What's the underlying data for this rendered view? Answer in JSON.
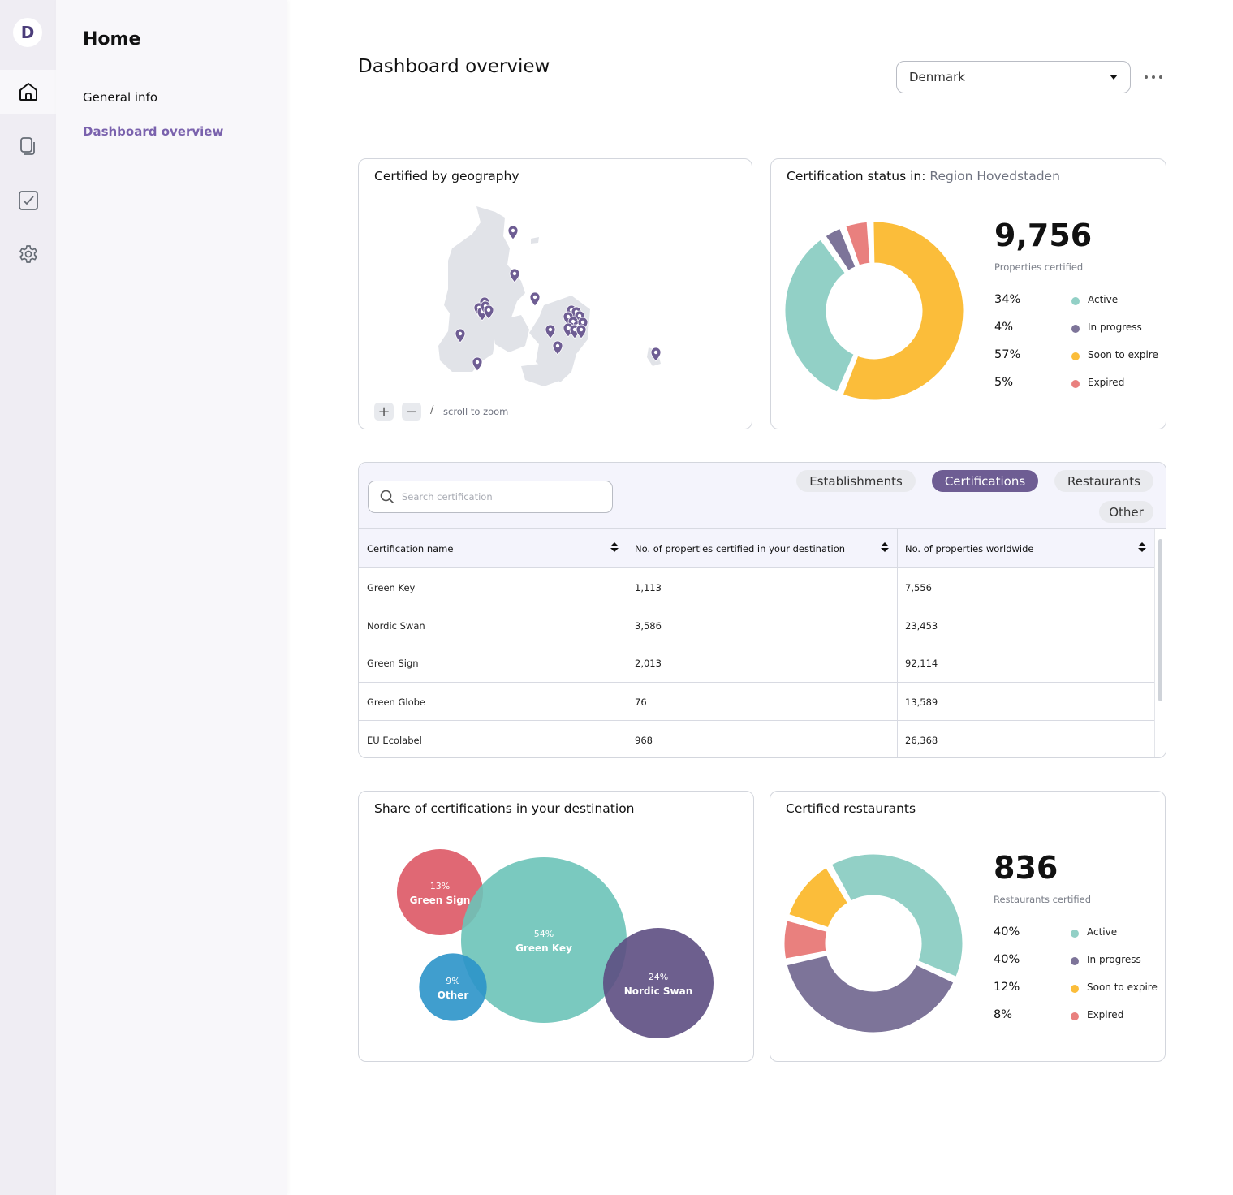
{
  "rail": {
    "logo_letter": "D",
    "items": [
      {
        "icon": "home-icon",
        "active": true
      },
      {
        "icon": "documents-icon",
        "active": false
      },
      {
        "icon": "checkbox-icon",
        "active": false
      },
      {
        "icon": "gear-icon",
        "active": false
      }
    ]
  },
  "nav": {
    "title": "Home",
    "links": [
      {
        "label": "General info",
        "active": false
      },
      {
        "label": "Dashboard overview",
        "active": true
      }
    ]
  },
  "header": {
    "title": "Dashboard overview",
    "country_select": {
      "value": "Denmark"
    },
    "more_icon": "ellipsis-icon"
  },
  "colors": {
    "active": "#92d0c6",
    "in_progress": "#7d7499",
    "soon_to_expire": "#fbbd3a",
    "expired": "#e9807e",
    "accent": "#7a62ad",
    "pill_active": "#6e5d93",
    "pin": "#6e5d93",
    "map_land": "#e1e3e8"
  },
  "geo_card": {
    "title": "Certified by geography",
    "zoom_in_label": "+",
    "zoom_out_label": "−",
    "separator": "/",
    "hint": "scroll to zoom"
  },
  "status_card": {
    "title_prefix": "Certification status in:",
    "region": "Region Hovedstaden",
    "total": "9,756",
    "total_label": "Properties certified"
  },
  "restaurants_card": {
    "title": "Certified restaurants",
    "total": "836",
    "total_label": "Restaurants certified"
  },
  "table": {
    "search_placeholder": "Search certification",
    "tabs": [
      {
        "label": "Establishments",
        "active": false
      },
      {
        "label": "Certifications",
        "active": true
      },
      {
        "label": "Restaurants",
        "active": false
      },
      {
        "label": "Other",
        "active": false
      }
    ],
    "columns": [
      "Certification name",
      "No. of properties certified in your destination",
      "No. of properties worldwide"
    ],
    "rows": [
      {
        "name": "Green Key",
        "destination": "1,113",
        "worldwide": "7,556"
      },
      {
        "name": "Nordic Swan",
        "destination": "3,586",
        "worldwide": "23,453"
      },
      {
        "name": "Green Sign",
        "destination": "2,013",
        "worldwide": "92,114"
      },
      {
        "name": "Green Globe",
        "destination": "76",
        "worldwide": "13,589"
      },
      {
        "name": "EU Ecolabel",
        "destination": "968",
        "worldwide": "26,368"
      }
    ]
  },
  "share_card": {
    "title": "Share of certifications in your destination"
  },
  "chart_data": [
    {
      "type": "pie",
      "variant": "donut",
      "title": "Certification status in: Region Hovedstaden",
      "total": 9756,
      "slices": [
        {
          "label": "Active",
          "value": 34,
          "display": "34%",
          "color": "#92d0c6"
        },
        {
          "label": "In progress",
          "value": 4,
          "display": "4%",
          "color": "#7d7499"
        },
        {
          "label": "Soon to expire",
          "value": 57,
          "display": "57%",
          "color": "#fbbd3a"
        },
        {
          "label": "Expired",
          "value": 5,
          "display": "5%",
          "color": "#e9807e"
        }
      ]
    },
    {
      "type": "pie",
      "variant": "donut",
      "title": "Certified restaurants",
      "total": 836,
      "slices": [
        {
          "label": "Active",
          "value": 40,
          "display": "40%",
          "color": "#92d0c6"
        },
        {
          "label": "In progress",
          "value": 40,
          "display": "40%",
          "color": "#7d7499"
        },
        {
          "label": "Soon to expire",
          "value": 12,
          "display": "12%",
          "color": "#fbbd3a"
        },
        {
          "label": "Expired",
          "value": 8,
          "display": "8%",
          "color": "#e9807e"
        }
      ]
    },
    {
      "type": "bubble",
      "title": "Share of certifications in your destination",
      "bubbles": [
        {
          "label": "Green Sign",
          "value": 13,
          "display": "13%",
          "color": "#dd5865"
        },
        {
          "label": "Green Key",
          "value": 54,
          "display": "54%",
          "color": "#6cc3b8"
        },
        {
          "label": "Other",
          "value": 9,
          "display": "9%",
          "color": "#2b93c9"
        },
        {
          "label": "Nordic Swan",
          "value": 24,
          "display": "24%",
          "color": "#5d4e82"
        }
      ]
    }
  ]
}
